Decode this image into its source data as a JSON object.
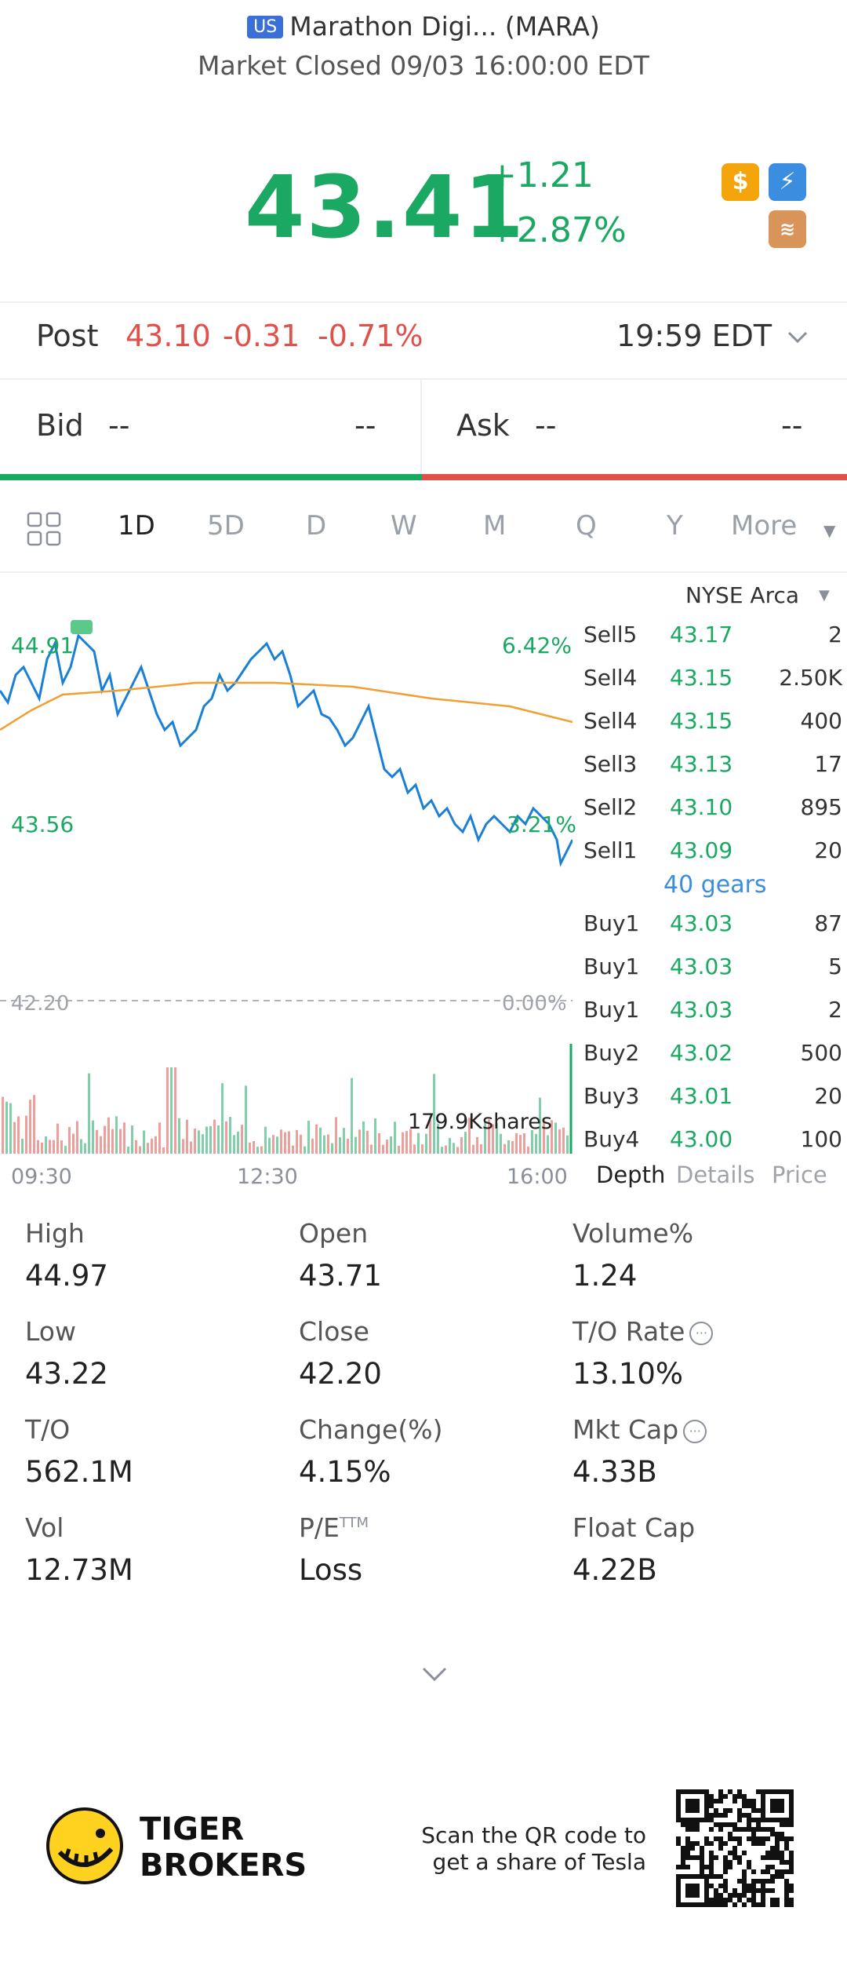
{
  "header": {
    "badge": "US",
    "title": "Marathon Digi... (MARA)",
    "status": "Market Closed 09/03 16:00:00 EDT"
  },
  "quote": {
    "price": "43.41",
    "change": "+1.21",
    "change_pct": "+2.87%"
  },
  "post": {
    "label": "Post",
    "price": "43.10",
    "change": "-0.31",
    "change_pct": "-0.71%",
    "time": "19:59 EDT"
  },
  "bidask": {
    "bid_label": "Bid",
    "bid_price": "--",
    "bid_size": "--",
    "ask_label": "Ask",
    "ask_price": "--",
    "ask_size": "--"
  },
  "tabs": [
    "1D",
    "5D",
    "D",
    "W",
    "M",
    "Q",
    "Y",
    "More"
  ],
  "chart": {
    "high_label": "44.91",
    "low_label": "43.56",
    "top_pct": "6.42%",
    "low_pct": "3.21%",
    "prev_close": "42.20",
    "zero_pct": "0.00%",
    "volume_label": "179.9Kshares",
    "times": [
      "09:30",
      "12:30",
      "16:00"
    ],
    "colors": {
      "price": "#1a7fd6",
      "avg": "#f0a030",
      "up": "#1aa863",
      "down": "#e0514b"
    }
  },
  "orderbook": {
    "exchange": "NYSE Arca",
    "sells": [
      {
        "label": "Sell5",
        "price": "43.17",
        "qty": "2"
      },
      {
        "label": "Sell4",
        "price": "43.15",
        "qty": "2.50K"
      },
      {
        "label": "Sell4",
        "price": "43.15",
        "qty": "400"
      },
      {
        "label": "Sell3",
        "price": "43.13",
        "qty": "17"
      },
      {
        "label": "Sell2",
        "price": "43.10",
        "qty": "895"
      },
      {
        "label": "Sell1",
        "price": "43.09",
        "qty": "20"
      }
    ],
    "gears": "40 gears",
    "buys": [
      {
        "label": "Buy1",
        "price": "43.03",
        "qty": "87"
      },
      {
        "label": "Buy1",
        "price": "43.03",
        "qty": "5"
      },
      {
        "label": "Buy1",
        "price": "43.03",
        "qty": "2"
      },
      {
        "label": "Buy2",
        "price": "43.02",
        "qty": "500"
      },
      {
        "label": "Buy3",
        "price": "43.01",
        "qty": "20"
      },
      {
        "label": "Buy4",
        "price": "43.00",
        "qty": "100"
      }
    ],
    "tabs": [
      "Depth",
      "Details",
      "Price"
    ]
  },
  "stats": [
    {
      "label": "High",
      "value": "44.97"
    },
    {
      "label": "Open",
      "value": "43.71"
    },
    {
      "label": "Volume%",
      "value": "1.24"
    },
    {
      "label": "Low",
      "value": "43.22"
    },
    {
      "label": "Close",
      "value": "42.20"
    },
    {
      "label": "T/O Rate",
      "value": "13.10%"
    },
    {
      "label": "T/O",
      "value": "562.1M"
    },
    {
      "label": "Change(%)",
      "value": "4.15%"
    },
    {
      "label": "Mkt Cap",
      "value": "4.33B"
    },
    {
      "label": "Vol",
      "value": "12.73M"
    },
    {
      "label": "P/E",
      "value": "Loss"
    },
    {
      "label": "Float Cap",
      "value": "4.22B"
    }
  ],
  "pe_sup": "TTM",
  "footer": {
    "brand_line1": "TIGER",
    "brand_line2": "BROKERS",
    "promo_line1": "Scan the QR code to",
    "promo_line2": "get a share of Tesla"
  }
}
